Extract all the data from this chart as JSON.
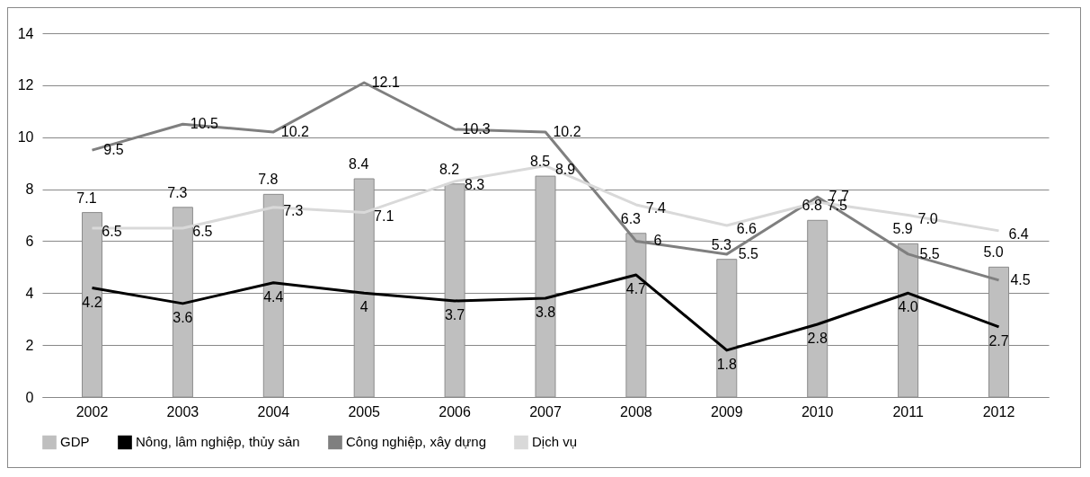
{
  "chart_data": {
    "type": "bar",
    "categories": [
      "2002",
      "2003",
      "2004",
      "2005",
      "2006",
      "2007",
      "2008",
      "2009",
      "2010",
      "2011",
      "2012"
    ],
    "series": [
      {
        "name": "GDP",
        "type": "bar",
        "color": "#bfbfbf",
        "values": [
          7.1,
          7.3,
          7.8,
          8.4,
          8.2,
          8.5,
          6.3,
          5.3,
          6.8,
          5.9,
          5.0
        ],
        "value_labels": [
          "7.1",
          "7.3",
          "7.8",
          "8.4",
          "8.2",
          "8.5",
          "6.3",
          "5.3",
          "6.8",
          "5.9",
          "5.0"
        ]
      },
      {
        "name": "Nông, lâm nghiệp, thủy sản",
        "type": "line",
        "color": "#000000",
        "values": [
          4.2,
          3.6,
          4.4,
          4,
          3.7,
          3.8,
          4.7,
          1.8,
          2.8,
          4.0,
          2.7
        ],
        "value_labels": [
          "4.2",
          "3.6",
          "4.4",
          "4",
          "3.7",
          "3.8",
          "4.7",
          "1.8",
          "2.8",
          "4.0",
          "2.7"
        ]
      },
      {
        "name": "Công nghiệp, xây dựng",
        "type": "line",
        "color": "#7f7f7f",
        "values": [
          9.5,
          10.5,
          10.2,
          12.1,
          10.3,
          10.2,
          6,
          5.5,
          7.7,
          5.5,
          4.5
        ],
        "value_labels": [
          "9.5",
          "10.5",
          "10.2",
          "12.1",
          "10.3",
          "10.2",
          "6",
          "5.5",
          "7.7",
          "5.5",
          "4.5"
        ]
      },
      {
        "name": "Dịch vụ",
        "type": "line",
        "color": "#d9d9d9",
        "values": [
          6.5,
          6.5,
          7.3,
          7.1,
          8.3,
          8.9,
          7.4,
          6.6,
          7.5,
          7.0,
          6.4
        ],
        "value_labels": [
          "6.5",
          "6.5",
          "7.3",
          "7.1",
          "8.3",
          "8.9",
          "7.4",
          "6.6",
          "7.5",
          "7.0",
          "6.4"
        ]
      }
    ],
    "ylim": [
      0,
      14
    ],
    "yticks": [
      0,
      2,
      4,
      6,
      8,
      10,
      12,
      14
    ],
    "grid": "y",
    "legend": "bottom",
    "marker": "none",
    "line_style": "solid"
  }
}
